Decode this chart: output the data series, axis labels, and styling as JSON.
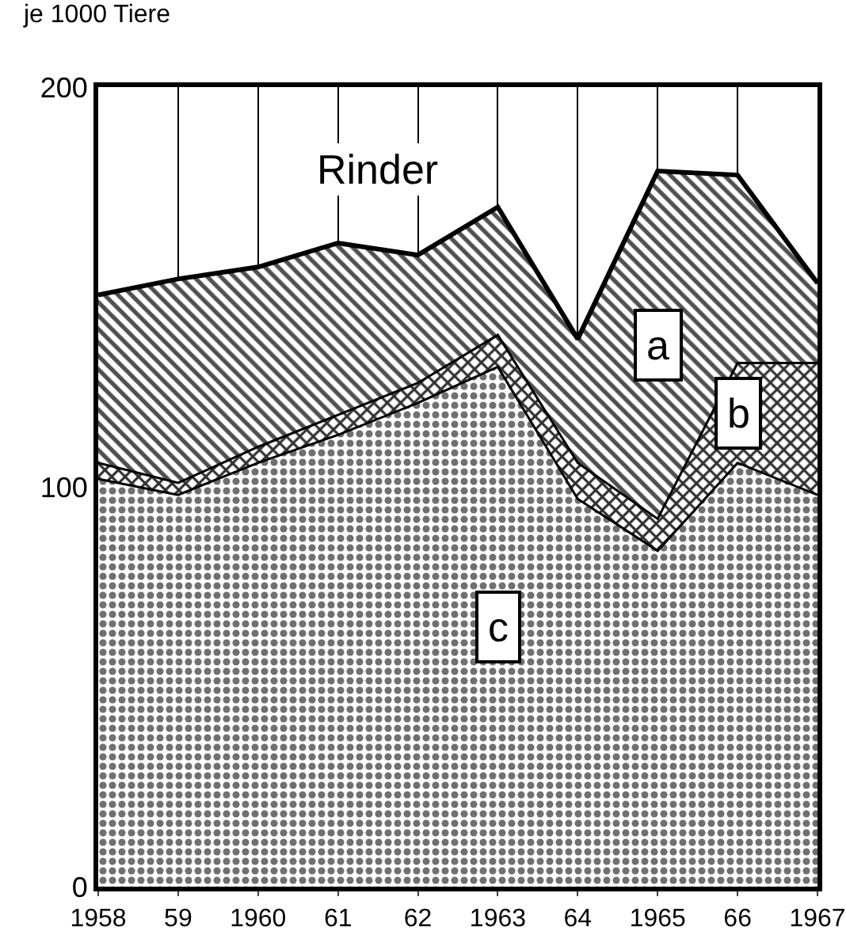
{
  "chart_data": {
    "type": "area",
    "stacked": true,
    "ylabel": "je 1000 Tiere",
    "annotations": [
      "Rinder"
    ],
    "x": [
      1958,
      1959,
      1960,
      1961,
      1962,
      1963,
      1964,
      1965,
      1966,
      1967
    ],
    "xlim": [
      1958,
      1967
    ],
    "xticks": [
      {
        "value": 1958,
        "label": "1958"
      },
      {
        "value": 1959,
        "label": "59"
      },
      {
        "value": 1960,
        "label": "1960"
      },
      {
        "value": 1961,
        "label": "61"
      },
      {
        "value": 1962,
        "label": "62"
      },
      {
        "value": 1963,
        "label": "1963"
      },
      {
        "value": 1964,
        "label": "64"
      },
      {
        "value": 1965,
        "label": "1965"
      },
      {
        "value": 1966,
        "label": "66"
      },
      {
        "value": 1967,
        "label": "1967"
      }
    ],
    "ylim": [
      0,
      200
    ],
    "yticks": [
      0,
      100,
      200
    ],
    "grid": true,
    "legend": false,
    "series": [
      {
        "name": "c",
        "color": "#707070",
        "values": [
          102,
          98,
          106,
          113,
          121,
          130,
          97,
          84,
          106,
          98
        ]
      },
      {
        "name": "b",
        "color": "#303030",
        "values": [
          4,
          3,
          4,
          5,
          5,
          8,
          9,
          8,
          25,
          33
        ]
      },
      {
        "name": "a",
        "color": "#505050",
        "values": [
          42,
          51,
          45,
          43,
          32,
          32,
          31,
          87,
          47,
          20
        ]
      }
    ]
  }
}
